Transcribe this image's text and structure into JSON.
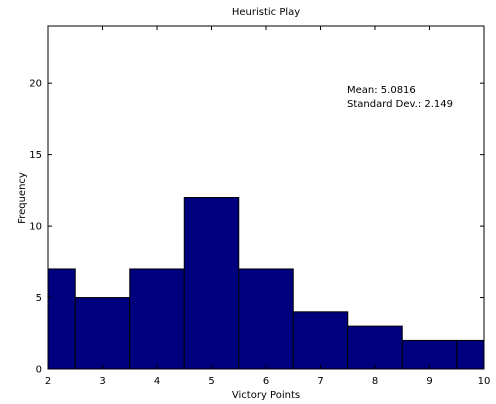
{
  "chart_data": {
    "type": "bar",
    "title": "Heuristic Play",
    "xlabel": "Victory Points",
    "ylabel": "Frequency",
    "xlim": [
      2,
      10
    ],
    "ylim": [
      0,
      24
    ],
    "xticks": [
      "2",
      "3",
      "4",
      "5",
      "6",
      "7",
      "8",
      "9",
      "10"
    ],
    "yticks": [
      "0",
      "5",
      "10",
      "15",
      "20"
    ],
    "bins": [
      {
        "x0": 2.0,
        "x1": 2.5,
        "value": 7
      },
      {
        "x0": 2.5,
        "x1": 3.5,
        "value": 5
      },
      {
        "x0": 3.5,
        "x1": 4.5,
        "value": 7
      },
      {
        "x0": 4.5,
        "x1": 5.5,
        "value": 12
      },
      {
        "x0": 5.5,
        "x1": 6.5,
        "value": 7
      },
      {
        "x0": 6.5,
        "x1": 7.5,
        "value": 4
      },
      {
        "x0": 7.5,
        "x1": 8.5,
        "value": 3
      },
      {
        "x0": 8.5,
        "x1": 9.5,
        "value": 2
      },
      {
        "x0": 9.5,
        "x1": 10.0,
        "value": 2
      }
    ],
    "annotations": {
      "mean": "Mean: 5.0816",
      "std": "Standard Dev.: 2.149"
    },
    "bar_color": "#00007f",
    "edge_color": "#000000",
    "grid": false
  }
}
